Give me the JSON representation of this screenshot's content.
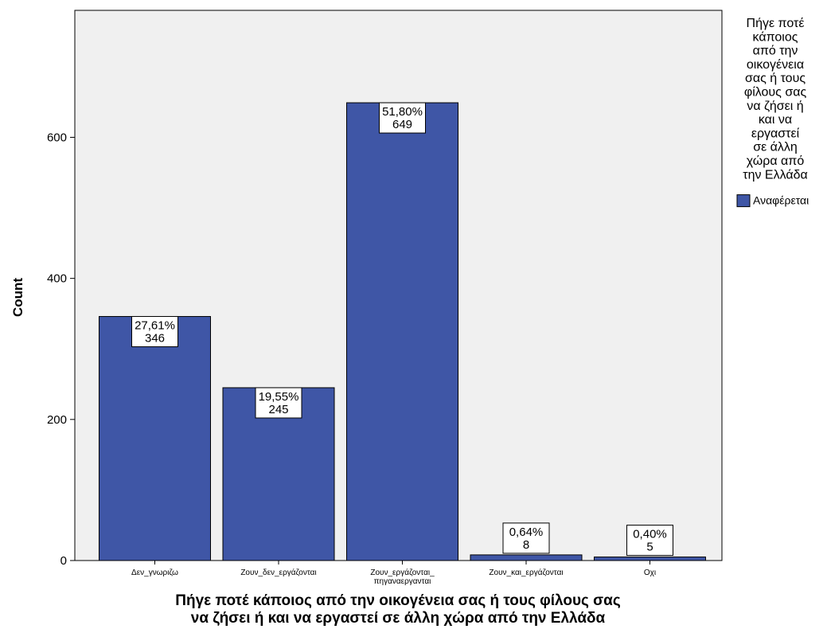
{
  "chart_data": {
    "type": "bar",
    "categories": [
      "Δεν_γνωριζω",
      "Ζουν_δεν_εργάζονται",
      "Ζουν_εργάζονται_ πηγαναεργανται",
      "Ζουν_και_εργάζονται",
      "Οχι"
    ],
    "series": [
      {
        "name": "Αναφέρεται",
        "values": [
          346,
          245,
          649,
          8,
          5
        ],
        "percent_labels": [
          "27,61%",
          "19,55%",
          "51,80%",
          "0,64%",
          "0,40%"
        ],
        "count_labels": [
          "346",
          "245",
          "649",
          "8",
          "5"
        ]
      }
    ],
    "xlabel": "Πήγε ποτέ κάποιος από την οικογένεια σας ή τους φίλους σας να ζήσει ή και να εργαστεί σε άλλη χώρα από την Ελλάδα",
    "ylabel": "Count",
    "ylim": [
      0,
      780
    ],
    "yticks": [
      0,
      200,
      400,
      600
    ],
    "ytick_labels": [
      "0",
      "200",
      "400",
      "600"
    ],
    "legend": {
      "title": "Πήγε ποτέ κάποιος από την οικογένεια σας ή τους φίλους σας να ζήσει ή και να εργαστεί σε άλλη χώρα από την Ελλάδα",
      "placement": "right"
    },
    "colors": {
      "bar": "#3f56a6",
      "plot_bg": "#f0f0f0",
      "bar_border": "#000000"
    },
    "grid": false
  }
}
